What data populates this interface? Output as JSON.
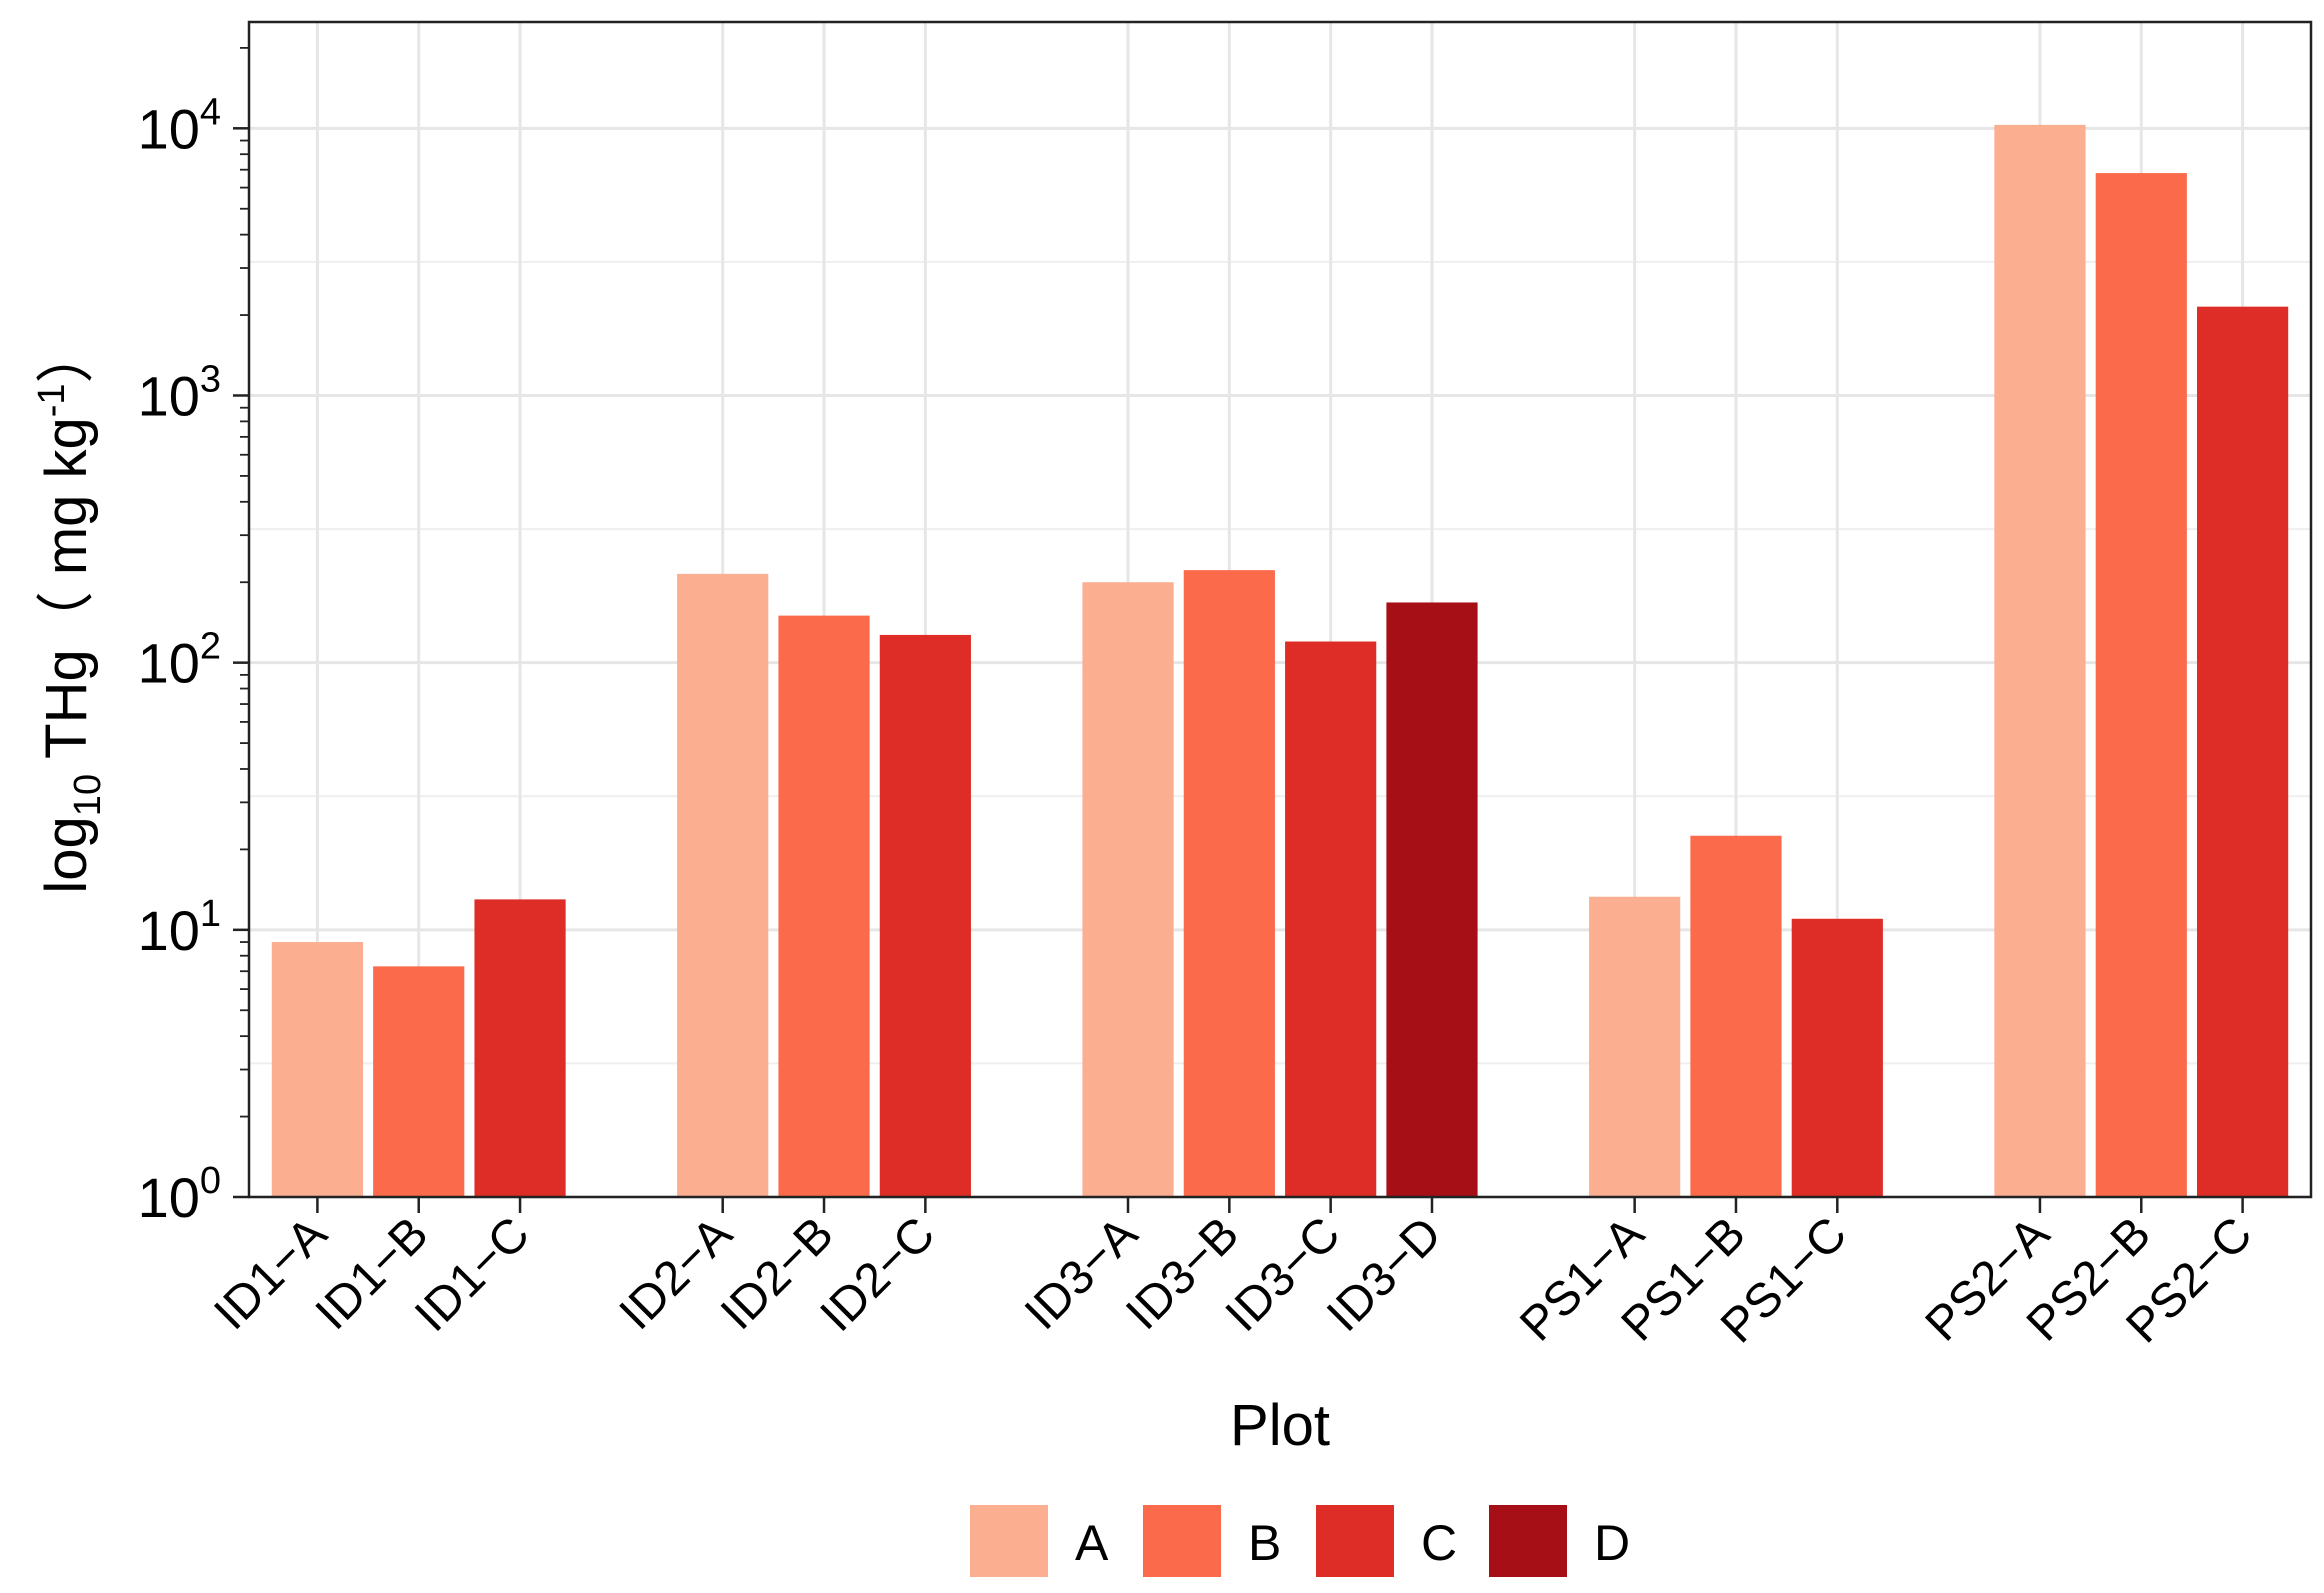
{
  "chart_data": {
    "type": "bar",
    "x_label": "Plot",
    "y_label": {
      "prefix": "log",
      "subscript": "10",
      "rest": " THg（ mg kg",
      "superscript": "-1",
      "close": "）"
    },
    "y_scale": "log10",
    "y_range": [
      1,
      25000
    ],
    "y_ticks": [
      {
        "value": 1,
        "base": "10",
        "exp": "0"
      },
      {
        "value": 10,
        "base": "10",
        "exp": "1"
      },
      {
        "value": 100,
        "base": "10",
        "exp": "2"
      },
      {
        "value": 1000,
        "base": "10",
        "exp": "3"
      },
      {
        "value": 10000,
        "base": "10",
        "exp": "4"
      }
    ],
    "grid": true,
    "legend_position": "bottom",
    "legend": [
      {
        "label": "A",
        "color": "#FCAE91"
      },
      {
        "label": "B",
        "color": "#FB6A4A"
      },
      {
        "label": "C",
        "color": "#DE2D26"
      },
      {
        "label": "D",
        "color": "#A50F15"
      }
    ],
    "groups": [
      {
        "bars": [
          {
            "label": "ID1−A",
            "series": "A",
            "value": 9
          },
          {
            "label": "ID1−B",
            "series": "B",
            "value": 7.3
          },
          {
            "label": "ID1−C",
            "series": "C",
            "value": 13
          }
        ]
      },
      {
        "bars": [
          {
            "label": "ID2−A",
            "series": "A",
            "value": 215
          },
          {
            "label": "ID2−B",
            "series": "B",
            "value": 150
          },
          {
            "label": "ID2−C",
            "series": "C",
            "value": 127
          }
        ]
      },
      {
        "bars": [
          {
            "label": "ID3−A",
            "series": "A",
            "value": 200
          },
          {
            "label": "ID3−B",
            "series": "B",
            "value": 222
          },
          {
            "label": "ID3−C",
            "series": "C",
            "value": 120
          },
          {
            "label": "ID3−D",
            "series": "D",
            "value": 168
          }
        ]
      },
      {
        "bars": [
          {
            "label": "PS1−A",
            "series": "A",
            "value": 13.3
          },
          {
            "label": "PS1−B",
            "series": "B",
            "value": 22.5
          },
          {
            "label": "PS1−C",
            "series": "C",
            "value": 11
          }
        ]
      },
      {
        "bars": [
          {
            "label": "PS2−A",
            "series": "A",
            "value": 10300
          },
          {
            "label": "PS2−B",
            "series": "B",
            "value": 6800
          },
          {
            "label": "PS2−C",
            "series": "C",
            "value": 2150
          }
        ]
      }
    ]
  }
}
